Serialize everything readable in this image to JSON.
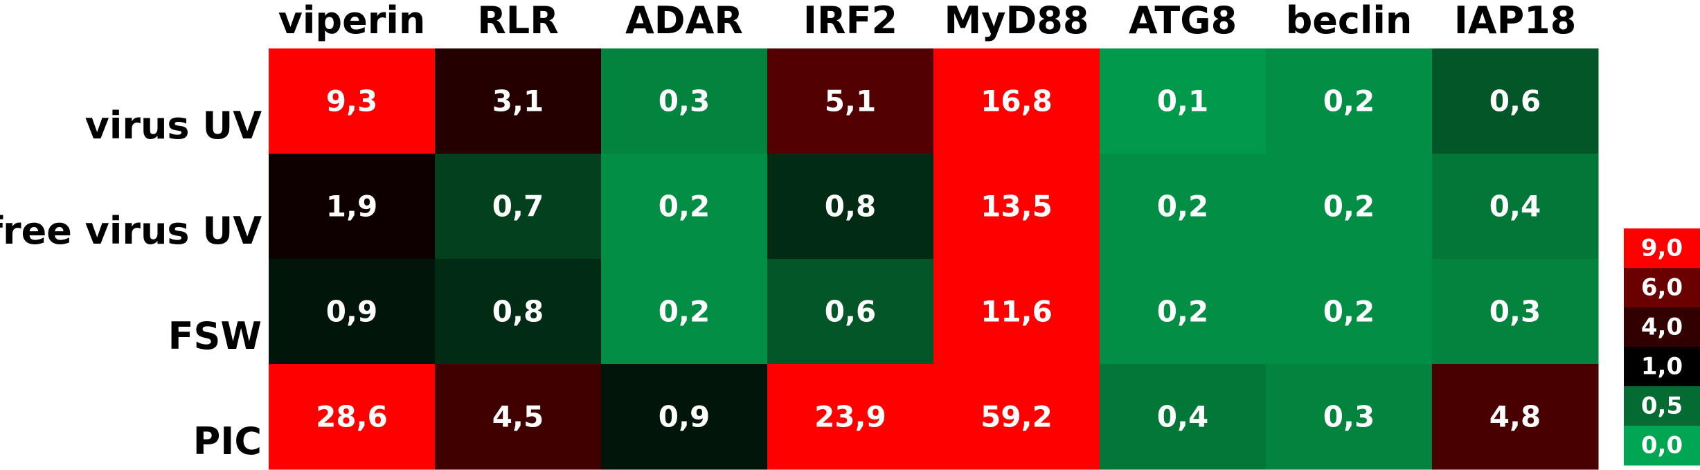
{
  "chart_data": {
    "type": "heatmap",
    "columns": [
      "viperin",
      "RLR",
      "ADAR",
      "IRF2",
      "MyD88",
      "ATG8",
      "beclin",
      "IAP18"
    ],
    "rows": [
      "virus UV",
      "free virus UV",
      "FSW",
      "PIC"
    ],
    "values": [
      [
        9.3,
        3.1,
        0.3,
        5.1,
        16.8,
        0.1,
        0.2,
        0.6
      ],
      [
        1.9,
        0.7,
        0.2,
        0.8,
        13.5,
        0.2,
        0.2,
        0.4
      ],
      [
        0.9,
        0.8,
        0.2,
        0.6,
        11.6,
        0.2,
        0.2,
        0.3
      ],
      [
        28.6,
        4.5,
        0.9,
        23.9,
        59.2,
        0.4,
        0.3,
        4.8
      ]
    ],
    "value_labels": [
      [
        "9,3",
        "3,1",
        "0,3",
        "5,1",
        "16,8",
        "0,1",
        "0,2",
        "0,6"
      ],
      [
        "1,9",
        "0,7",
        "0,2",
        "0,8",
        "13,5",
        "0,2",
        "0,2",
        "0,4"
      ],
      [
        "0,9",
        "0,8",
        "0,2",
        "0,6",
        "11,6",
        "0,2",
        "0,2",
        "0,3"
      ],
      [
        "28,6",
        "4,5",
        "0,9",
        "23,9",
        "59,2",
        "0,4",
        "0,3",
        "4,8"
      ]
    ],
    "legend": {
      "placement": "right",
      "stops": [
        {
          "label": "9,0",
          "value": 9.0,
          "color": "#ff0000"
        },
        {
          "label": "6,0",
          "value": 6.0,
          "color": "#6b0000"
        },
        {
          "label": "4,0",
          "value": 4.0,
          "color": "#330000"
        },
        {
          "label": "1,0",
          "value": 1.0,
          "color": "#000000"
        },
        {
          "label": "0,5",
          "value": 0.5,
          "color": "#046b32"
        },
        {
          "label": "0,0",
          "value": 0.0,
          "color": "#00a651"
        }
      ]
    }
  }
}
